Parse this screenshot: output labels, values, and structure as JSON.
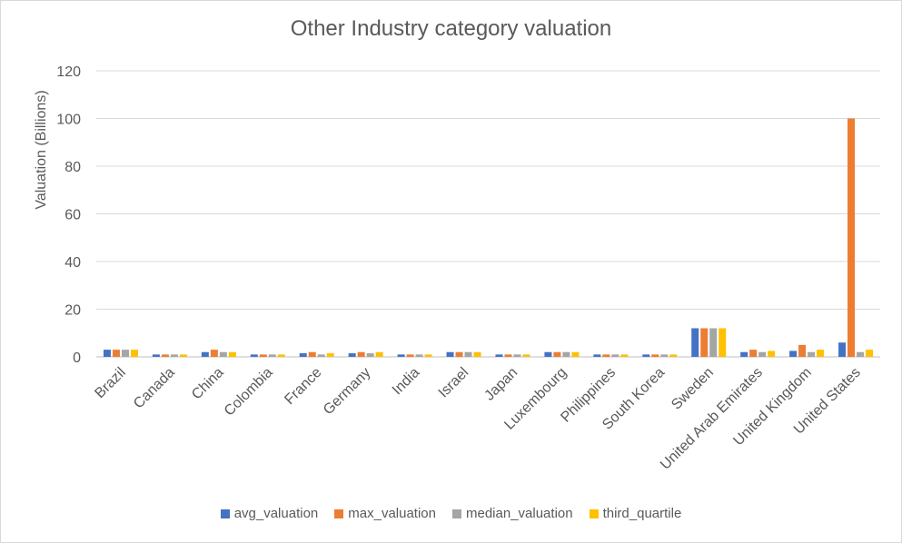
{
  "chart_data": {
    "type": "bar",
    "title": "Other Industry category valuation",
    "xlabel": "",
    "ylabel": "Valuation  (Billions)",
    "ylim": [
      0,
      120
    ],
    "yticks": [
      0,
      20,
      40,
      60,
      80,
      100,
      120
    ],
    "grid": true,
    "legend_position": "bottom",
    "categories": [
      "Brazil",
      "Canada",
      "China",
      "Colombia",
      "France",
      "Germany",
      "India",
      "Israel",
      "Japan",
      "Luxembourg",
      "Philippines",
      "South Korea",
      "Sweden",
      "United Arab Emirates",
      "United Kingdom",
      "United States"
    ],
    "series": [
      {
        "name": "avg_valuation",
        "color": "#4472c4",
        "values": [
          3,
          1,
          2,
          1,
          1.5,
          1.5,
          1,
          2,
          1,
          2,
          1,
          1,
          12,
          2,
          2.5,
          6
        ]
      },
      {
        "name": "max_valuation",
        "color": "#ed7d31",
        "values": [
          3,
          1,
          3,
          1,
          2,
          2,
          1,
          2,
          1,
          2,
          1,
          1,
          12,
          3,
          5,
          100
        ]
      },
      {
        "name": "median_valuation",
        "color": "#a5a5a5",
        "values": [
          3,
          1,
          2,
          1,
          1,
          1.5,
          1,
          2,
          1,
          2,
          1,
          1,
          12,
          2,
          2,
          2
        ]
      },
      {
        "name": "third_quartile",
        "color": "#ffc000",
        "values": [
          3,
          1,
          2,
          1,
          1.5,
          2,
          1,
          2,
          1,
          2,
          1,
          1,
          12,
          2.5,
          3,
          3
        ]
      }
    ]
  }
}
